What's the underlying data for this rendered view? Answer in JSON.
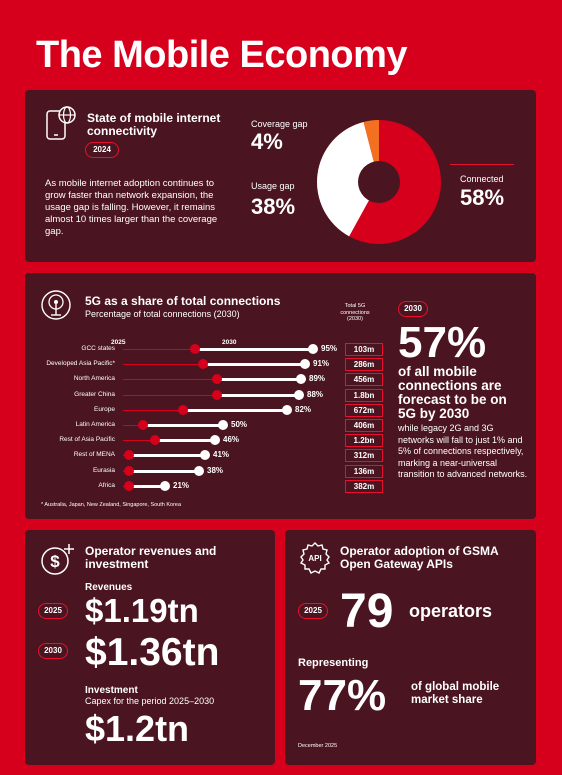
{
  "page": {
    "title": "The Mobile Economy",
    "footer_date": "December 2025"
  },
  "connectivity": {
    "heading": "State of mobile internet connectivity",
    "year_badge": "2024",
    "description": "As mobile internet adoption continues to grow faster than network expansion, the usage gap is falling. However, it remains almost 10 times larger than the coverage gap.",
    "coverage_label": "Coverage gap",
    "coverage_value": "4%",
    "usage_label": "Usage gap",
    "usage_value": "38%",
    "connected_label": "Connected",
    "connected_value": "58%",
    "donut": {
      "connected": 58,
      "usage_gap": 38,
      "coverage_gap": 4,
      "colors": {
        "connected": "#d6001c",
        "usage_gap": "#ffffff",
        "coverage_gap": "#f37021"
      }
    }
  },
  "fiveg": {
    "heading": "5G as a share of total connections",
    "subheading": "Percentage of total connections (2030)",
    "year_2025": "2025",
    "year_2030": "2030",
    "conn_header": "Total 5G connections (2030)",
    "footnote": "* Australia, Japan, New Zealand, Singapore, South Korea",
    "badge": "2030",
    "big_value": "57%",
    "big_text": "of all mobile connections are forecast to be on 5G by 2030",
    "detail": "while legacy 2G and 3G networks will fall to just 1% and 5% of connections respectively, marking a near-universal transition to advanced networks.",
    "rows": [
      {
        "region": "GCC states",
        "pct_label": "95%",
        "v2025": 36,
        "v2030": 95,
        "connections": "103m"
      },
      {
        "region": "Developed Asia Pacific*",
        "pct_label": "91%",
        "v2025": 40,
        "v2030": 91,
        "connections": "286m"
      },
      {
        "region": "North America",
        "pct_label": "89%",
        "v2025": 47,
        "v2030": 89,
        "connections": "456m"
      },
      {
        "region": "Greater China",
        "pct_label": "88%",
        "v2025": 47,
        "v2030": 88,
        "connections": "1.8bn"
      },
      {
        "region": "Europe",
        "pct_label": "82%",
        "v2025": 30,
        "v2030": 82,
        "connections": "672m"
      },
      {
        "region": "Latin America",
        "pct_label": "50%",
        "v2025": 10,
        "v2030": 50,
        "connections": "406m"
      },
      {
        "region": "Rest of Asia Pacific",
        "pct_label": "46%",
        "v2025": 16,
        "v2030": 46,
        "connections": "1.2bn"
      },
      {
        "region": "Rest of MENA",
        "pct_label": "41%",
        "v2025": 3,
        "v2030": 41,
        "connections": "312m"
      },
      {
        "region": "Eurasia",
        "pct_label": "38%",
        "v2025": 3,
        "v2030": 38,
        "connections": "136m"
      },
      {
        "region": "Africa",
        "pct_label": "21%",
        "v2025": 3,
        "v2030": 21,
        "connections": "382m"
      }
    ]
  },
  "revenues": {
    "heading": "Operator revenues and investment",
    "revenues_label": "Revenues",
    "badge_2025": "2025",
    "value_2025": "$1.19tn",
    "badge_2030": "2030",
    "value_2030": "$1.36tn",
    "investment_label": "Investment",
    "investment_sub": "Capex for the period 2025–2030",
    "investment_value": "$1.2tn"
  },
  "apis": {
    "heading": "Operator adoption of GSMA Open Gateway APIs",
    "api_icon_text": "API",
    "badge": "2025",
    "operators_value": "79",
    "operators_label": "operators",
    "representing": "Representing",
    "share_value": "77%",
    "share_label": "of global mobile market share"
  }
}
